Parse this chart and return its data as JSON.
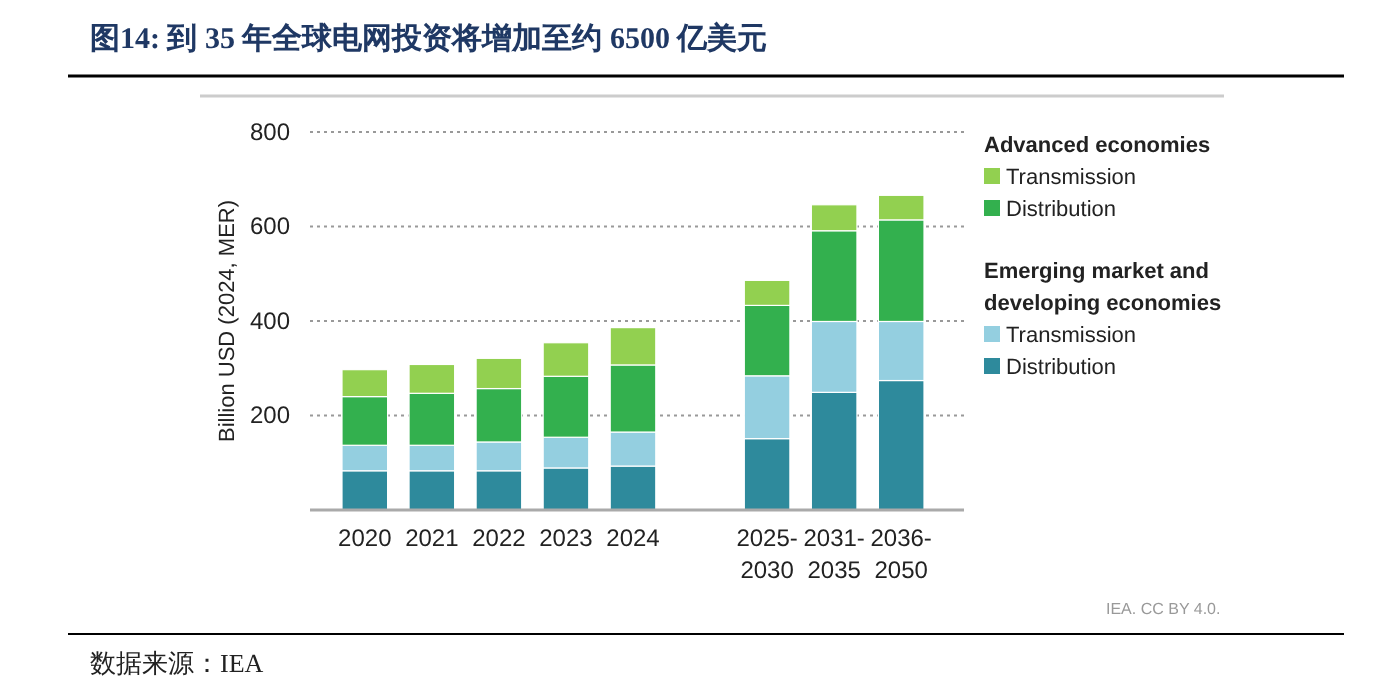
{
  "chart_data": {
    "type": "bar",
    "title": "图14:  到 35 年全球电网投资将增加至约 6500 亿美元",
    "ylabel": "Billion USD (2024, MER)",
    "categories": [
      "2020",
      "2021",
      "2022",
      "2023",
      "2024",
      null,
      "2025-2030",
      "2031-2035",
      "2036-2050"
    ],
    "stacked": true,
    "ylim": [
      0,
      800
    ],
    "yticks": [
      200,
      400,
      600,
      800
    ],
    "grid": "y",
    "legend": "right",
    "series": [
      {
        "name": "Distribution",
        "color": "#2e8a9c",
        "values": [
          83,
          83,
          83,
          89,
          93,
          null,
          151,
          249,
          274
        ]
      },
      {
        "name": "Transmission",
        "color": "#94cfe0",
        "values": [
          54,
          54,
          61,
          65,
          72,
          null,
          133,
          150,
          125
        ]
      },
      {
        "name": "Distribution",
        "color": "#33b04e",
        "values": [
          103,
          110,
          113,
          129,
          142,
          null,
          149,
          192,
          215
        ]
      },
      {
        "name": "Transmission",
        "color": "#92d050",
        "values": [
          57,
          61,
          64,
          71,
          79,
          null,
          53,
          55,
          52
        ]
      }
    ],
    "annotations": [
      "Emerging market and developing economies",
      "Advanced economies",
      "IEA. CC BY 4.0.",
      "数据来源：IEA"
    ]
  }
}
